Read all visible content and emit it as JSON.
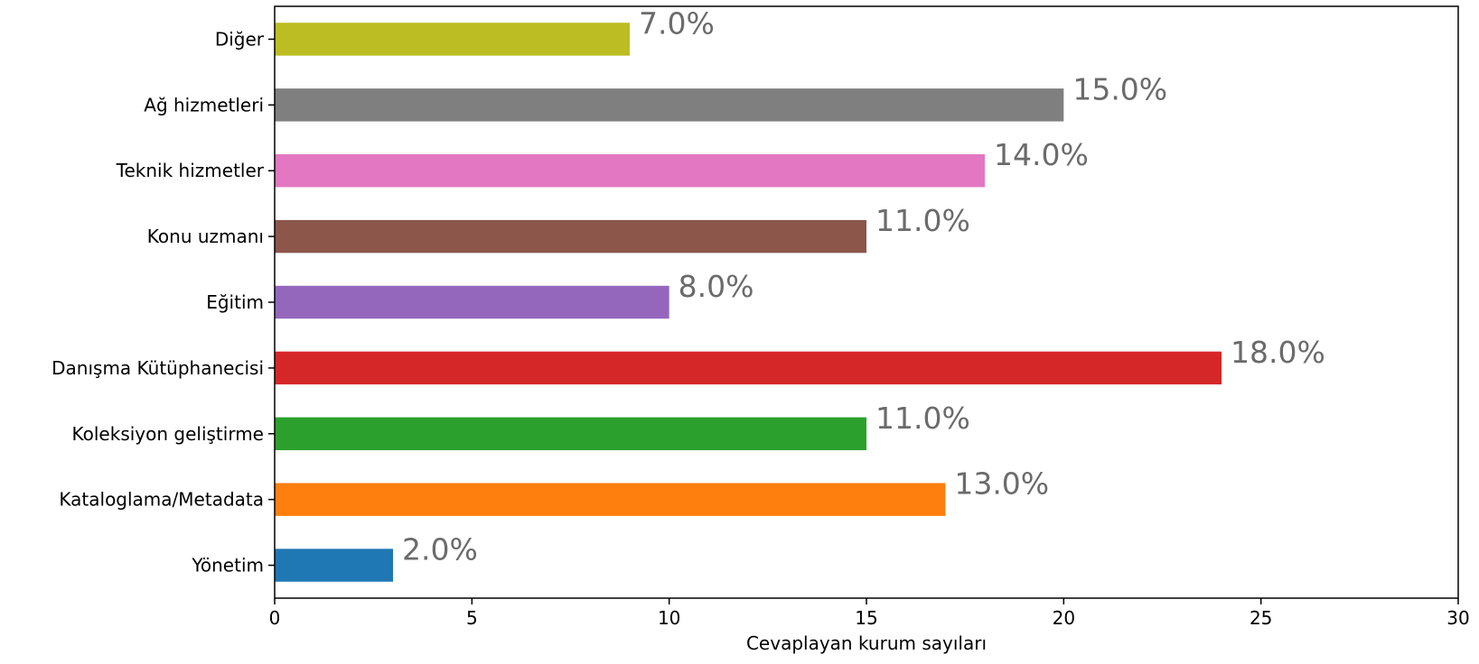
{
  "chart_data": {
    "type": "bar",
    "orientation": "horizontal",
    "categories": [
      "Yönetim",
      "Kataloglama/Metadata",
      "Koleksiyon geliştirme",
      "Danışma Kütüphanecisi",
      "Eğitim",
      "Konu uzmanı",
      "Teknik hizmetler",
      "Ağ hizmetleri",
      "Diğer"
    ],
    "values": [
      3,
      17,
      15,
      24,
      10,
      15,
      18,
      20,
      9
    ],
    "data_labels": [
      "2.0%",
      "13.0%",
      "11.0%",
      "18.0%",
      "8.0%",
      "11.0%",
      "14.0%",
      "15.0%",
      "7.0%"
    ],
    "colors": [
      "#1f77b4",
      "#ff7f0e",
      "#2ca02c",
      "#d62728",
      "#9467bd",
      "#8c564b",
      "#e377c2",
      "#7f7f7f",
      "#bcbd22"
    ],
    "xlabel": "Cevaplayan kurum sayıları",
    "ylabel": "",
    "xlim": [
      0,
      30
    ],
    "xticks": [
      "0",
      "5",
      "10",
      "15",
      "20",
      "25",
      "30"
    ],
    "grid": false,
    "legend": "none"
  }
}
